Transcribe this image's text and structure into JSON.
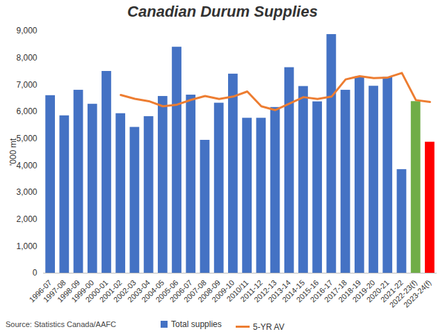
{
  "chart_data": {
    "type": "bar",
    "title": "Canadian Durum Supplies",
    "y_label": "'000 mt",
    "source": "Source: Statistics Canada/AAFC",
    "categories": [
      "1996-07",
      "1997-08",
      "1998-09",
      "1999-00",
      "2000-01",
      "2001-02",
      "2002-03",
      "2003-04",
      "2004-05",
      "2005-06",
      "2006-07",
      "2007-08",
      "2008-09",
      "2009-10",
      "2010/11",
      "2011-12",
      "2012-13",
      "2013-14",
      "2014-15",
      "2015-16",
      "2016-17",
      "2017-18",
      "2018-19",
      "2019-20",
      "2020-21",
      "2021-22",
      "2022-23(f)",
      "2023-24(f)"
    ],
    "series": [
      {
        "name": "Total supplies",
        "type": "bar",
        "color": "#4472c4",
        "colors": [
          "#4472c4",
          "#4472c4",
          "#4472c4",
          "#4472c4",
          "#4472c4",
          "#4472c4",
          "#4472c4",
          "#4472c4",
          "#4472c4",
          "#4472c4",
          "#4472c4",
          "#4472c4",
          "#4472c4",
          "#4472c4",
          "#4472c4",
          "#4472c4",
          "#4472c4",
          "#4472c4",
          "#4472c4",
          "#4472c4",
          "#4472c4",
          "#4472c4",
          "#4472c4",
          "#4472c4",
          "#4472c4",
          "#4472c4",
          "#70ad47",
          "#ff0000"
        ],
        "values": [
          6600,
          5850,
          6800,
          6280,
          7500,
          5930,
          5420,
          5820,
          6570,
          8400,
          6620,
          4940,
          6320,
          7400,
          5760,
          5760,
          6160,
          7640,
          6940,
          6370,
          8870,
          6800,
          7300,
          6950,
          7280,
          3850,
          6380,
          4870
        ]
      },
      {
        "name": "5-YR AV",
        "type": "line",
        "color": "#ed7d31",
        "values": [
          null,
          null,
          null,
          null,
          null,
          6620,
          6480,
          6390,
          6200,
          6260,
          6440,
          6580,
          6470,
          6560,
          6750,
          6200,
          6060,
          6300,
          6540,
          6470,
          6560,
          7200,
          7320,
          7250,
          7270,
          7440,
          6430,
          6360
        ]
      }
    ],
    "ylim": [
      0,
      9000
    ],
    "yticks": [
      0,
      {
        "value": 1000,
        "label": "1,000"
      },
      {
        "value": 2000,
        "label": "2,000"
      },
      {
        "value": 3000,
        "label": "3,000"
      },
      {
        "value": 4000,
        "label": "4,000"
      },
      {
        "value": 5000,
        "label": "5,000"
      },
      {
        "value": 6000,
        "label": "6,000"
      },
      {
        "value": 7000,
        "label": "7,000"
      },
      {
        "value": 8000,
        "label": "8,000"
      },
      {
        "value": 9000,
        "label": "9,000"
      }
    ],
    "grid": false,
    "legend": "bottom"
  }
}
